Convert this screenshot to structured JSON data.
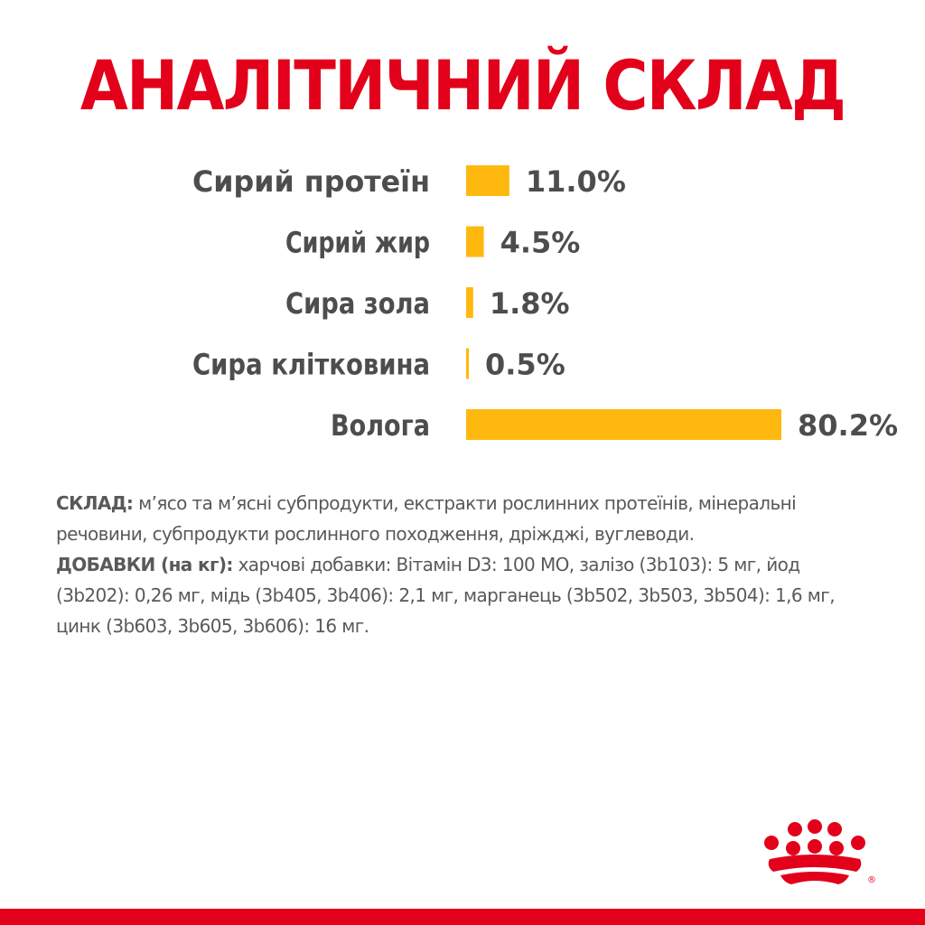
{
  "title": "АНАЛІТИЧНИЙ СКЛАД",
  "chart_data": {
    "type": "bar",
    "orientation": "horizontal",
    "categories": [
      "Сирий протеїн",
      "Сирий жир",
      "Сира зола",
      "Сира клітковина",
      "Волога"
    ],
    "values": [
      11.0,
      4.5,
      1.8,
      0.5,
      80.2
    ],
    "value_labels": [
      "11.0%",
      "4.5%",
      "1.8%",
      "0.5%",
      "80.2%"
    ],
    "unit": "%",
    "bar_color": "#ffb80f",
    "grid": false,
    "legend": "none"
  },
  "composition": {
    "label": "СКЛАД:",
    "text": " м’ясо та м’ясні субпродукти, екстракти рослинних протеїнів, мінеральні речовини, субпродукти рослинного походження, дріжджі, вуглеводи."
  },
  "additives": {
    "label": "ДОБАВКИ (на кг):",
    "text": " харчові добавки: Вітамін D3: 100 МО, залізо (3b103): 5 мг, йод (3b202): 0,26 мг, мідь (3b405, 3b406): 2,1 мг, марганець (3b502, 3b503, 3b504): 1,6 мг, цинк (3b603, 3b605, 3b606): 16 мг."
  },
  "colors": {
    "brand_red": "#e2001a",
    "text_gray": "#4d4d4d",
    "bar_yellow": "#ffb80f"
  },
  "logo": {
    "icon": "crown-logo-icon",
    "trademark": "®"
  }
}
